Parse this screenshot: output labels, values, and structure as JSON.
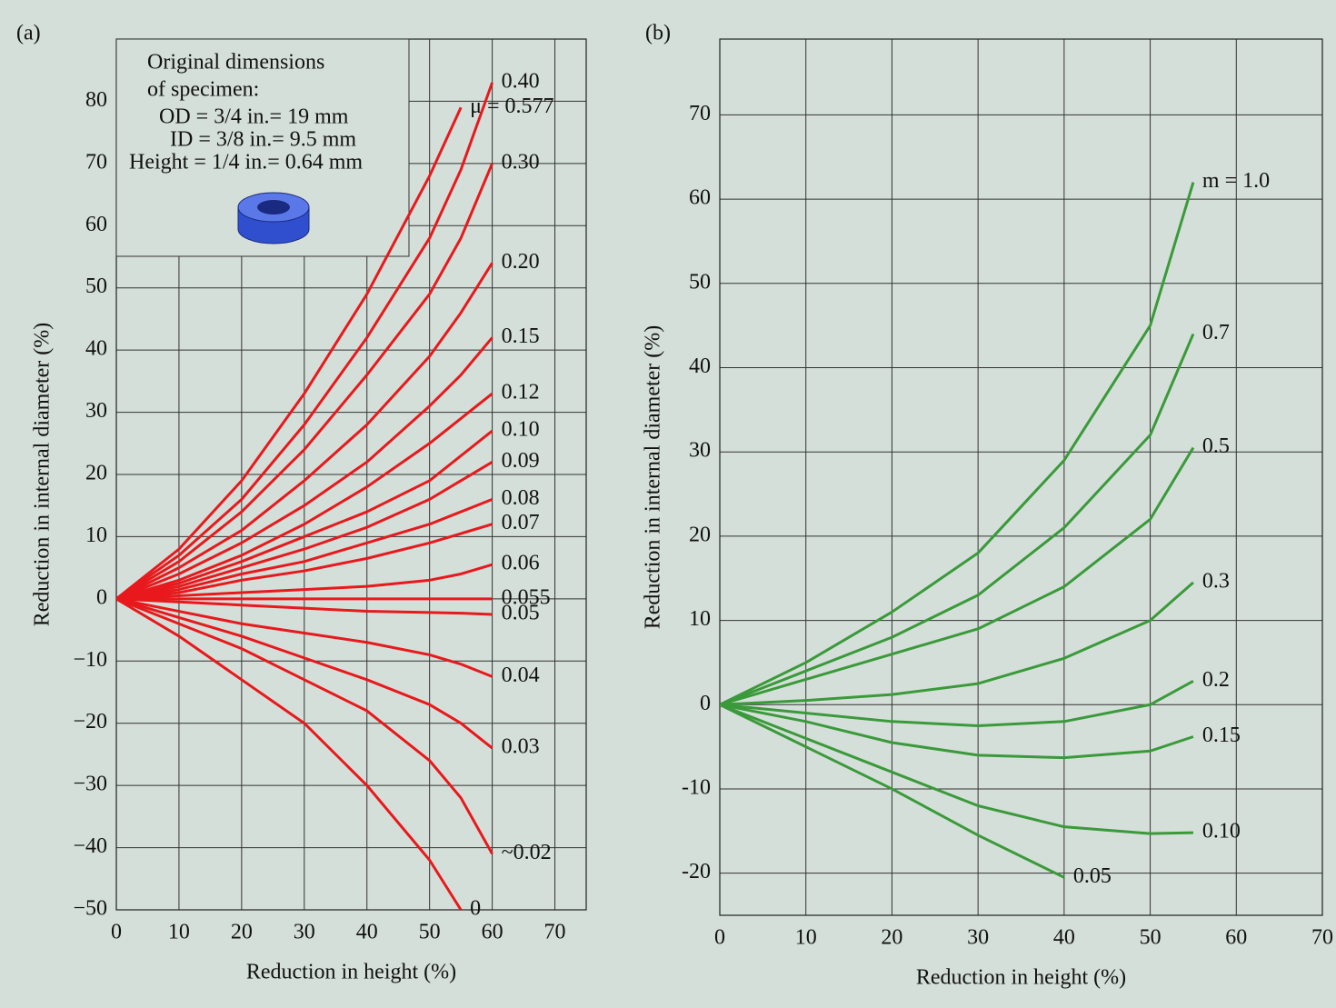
{
  "chart_data": [
    {
      "type": "line",
      "panel_label": "(a)",
      "xlabel": "Reduction in height (%)",
      "ylabel": "Reduction in internal diameter (%)",
      "xlim": [
        0,
        75
      ],
      "ylim": [
        -50,
        90
      ],
      "xticks": [
        0,
        10,
        20,
        30,
        40,
        50,
        60,
        70
      ],
      "yticks": [
        {
          "value": -50,
          "label": "−50"
        },
        {
          "value": -40,
          "label": "−40"
        },
        {
          "value": -30,
          "label": "−30"
        },
        {
          "value": -20,
          "label": "−20"
        },
        {
          "value": -10,
          "label": "−10"
        },
        0,
        10,
        20,
        30,
        40,
        50,
        60,
        70,
        80
      ],
      "grid": true,
      "annotations": [
        "Original dimensions",
        "of specimen:",
        "OD = 3/4 in.= 19 mm",
        "ID = 3/8 in.= 9.5 mm",
        "Height = 1/4 in.= 0.64 mm"
      ],
      "x": [
        0,
        10,
        20,
        30,
        40,
        50,
        55,
        60
      ],
      "series": [
        {
          "name": "μ = 0.577",
          "color": "#e8191c",
          "values": [
            0,
            8,
            19,
            33,
            49,
            68,
            79,
            null
          ]
        },
        {
          "name": "0.40",
          "color": "#e8191c",
          "values": [
            0,
            7,
            16,
            28,
            42,
            58,
            69,
            83
          ]
        },
        {
          "name": "0.30",
          "color": "#e8191c",
          "values": [
            0,
            6,
            14,
            24,
            36,
            49,
            58,
            70
          ]
        },
        {
          "name": "0.20",
          "color": "#e8191c",
          "values": [
            0,
            5,
            11,
            19,
            28,
            39,
            46,
            54
          ]
        },
        {
          "name": "0.15",
          "color": "#e8191c",
          "values": [
            0,
            4,
            9,
            15,
            22,
            31,
            36,
            42
          ]
        },
        {
          "name": "0.12",
          "color": "#e8191c",
          "values": [
            0,
            3,
            7,
            12,
            18,
            25,
            29,
            33
          ]
        },
        {
          "name": "0.10",
          "color": "#e8191c",
          "values": [
            0,
            2.5,
            6,
            10,
            14,
            19,
            23,
            27
          ]
        },
        {
          "name": "0.09",
          "color": "#e8191c",
          "values": [
            0,
            2,
            5,
            8,
            11.5,
            16,
            19,
            22
          ]
        },
        {
          "name": "0.08",
          "color": "#e8191c",
          "values": [
            0,
            1.5,
            4,
            6,
            9,
            12,
            14,
            16
          ]
        },
        {
          "name": "0.07",
          "color": "#e8191c",
          "values": [
            0,
            1,
            3,
            4.5,
            6.5,
            9,
            10.5,
            12
          ]
        },
        {
          "name": "0.06",
          "color": "#e8191c",
          "values": [
            0,
            0.5,
            1,
            1.5,
            2,
            3,
            4,
            5.5
          ]
        },
        {
          "name": "0.055",
          "color": "#e8191c",
          "values": [
            0,
            0,
            0,
            0,
            0,
            0,
            0,
            0
          ]
        },
        {
          "name": "0.05",
          "color": "#e8191c",
          "values": [
            0,
            -0.5,
            -1,
            -1.5,
            -2,
            -2.2,
            -2.3,
            -2.5
          ]
        },
        {
          "name": "0.04",
          "color": "#e8191c",
          "values": [
            0,
            -2,
            -4,
            -5.5,
            -7,
            -9,
            -10.5,
            -12.5
          ]
        },
        {
          "name": "0.03",
          "color": "#e8191c",
          "values": [
            0,
            -3,
            -6,
            -9.5,
            -13,
            -17,
            -20,
            -24
          ]
        },
        {
          "name": "~0.02",
          "color": "#e8191c",
          "values": [
            0,
            -4,
            -8,
            -13,
            -18,
            -26,
            -32,
            -41
          ]
        },
        {
          "name": "0",
          "color": "#e8191c",
          "values": [
            0,
            -6,
            -13,
            -20,
            -30,
            -42,
            -50,
            null
          ]
        }
      ]
    },
    {
      "type": "line",
      "panel_label": "(b)",
      "xlabel": "Reduction in height (%)",
      "ylabel": "Reduction in internal diameter (%)",
      "xlim": [
        0,
        70
      ],
      "ylim": [
        -25,
        79
      ],
      "xticks": [
        0,
        10,
        20,
        30,
        40,
        50,
        60,
        70
      ],
      "yticks": [
        -20,
        -10,
        0,
        10,
        20,
        30,
        40,
        50,
        60,
        70
      ],
      "grid": true,
      "x": [
        0,
        10,
        20,
        30,
        40,
        50,
        55
      ],
      "series": [
        {
          "name": "m = 1.0",
          "color": "#3a9a3a",
          "values": [
            0,
            5,
            11,
            18,
            29,
            45,
            62
          ]
        },
        {
          "name": "0.7",
          "color": "#3a9a3a",
          "values": [
            0,
            4,
            8,
            13,
            21,
            32,
            44
          ]
        },
        {
          "name": "0.5",
          "color": "#3a9a3a",
          "values": [
            0,
            3,
            6,
            9,
            14,
            22,
            30.5
          ]
        },
        {
          "name": "0.3",
          "color": "#3a9a3a",
          "values": [
            0,
            0.5,
            1.2,
            2.5,
            5.5,
            10,
            14.5
          ]
        },
        {
          "name": "0.2",
          "color": "#3a9a3a",
          "values": [
            0,
            -1,
            -2,
            -2.5,
            -2,
            0,
            2.8
          ]
        },
        {
          "name": "0.15",
          "color": "#3a9a3a",
          "values": [
            0,
            -2,
            -4.5,
            -6,
            -6.3,
            -5.5,
            -3.8
          ]
        },
        {
          "name": "0.10",
          "color": "#3a9a3a",
          "values": [
            0,
            -4,
            -8,
            -12,
            -14.5,
            -15.3,
            -15.2
          ]
        },
        {
          "name": "0.05",
          "color": "#3a9a3a",
          "values": [
            0,
            -5,
            -10,
            -15.5,
            -20.5,
            null,
            null
          ]
        }
      ]
    }
  ]
}
